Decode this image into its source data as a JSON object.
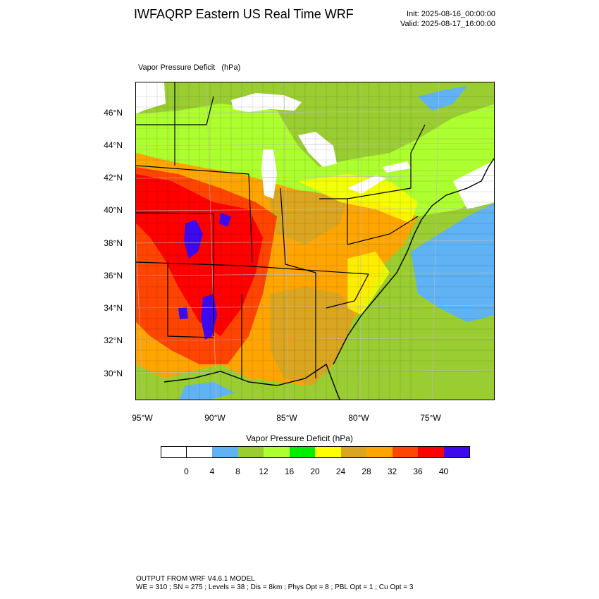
{
  "header": {
    "title": "IWFAQRP Eastern US Real Time WRF",
    "init": "Init: 2025-08-16_00:00:00",
    "valid": "Valid: 2025-08-17_16:00:00"
  },
  "plot": {
    "variable_label": "Vapor Pressure Deficit   (hPa)"
  },
  "axes": {
    "lat_labels": [
      "46°N",
      "44°N",
      "42°N",
      "40°N",
      "38°N",
      "36°N",
      "34°N",
      "32°N",
      "30°N"
    ],
    "lon_labels": [
      "95°W",
      "90°W",
      "85°W",
      "80°W",
      "75°W"
    ]
  },
  "colorbar": {
    "title": "Vapor Pressure Deficit  (hPa)",
    "labels": [
      "0",
      "4",
      "8",
      "12",
      "16",
      "20",
      "24",
      "28",
      "32",
      "36",
      "40"
    ],
    "colors": [
      "#ffffff",
      "#ffffff",
      "#5fb3f4",
      "#9acd32",
      "#adff2f",
      "#00ee00",
      "#ffff00",
      "#daa520",
      "#ffa500",
      "#ff4500",
      "#ff0000",
      "#3d0af0"
    ]
  },
  "footer": {
    "line1": "OUTPUT FROM WRF V4.6.1 MODEL",
    "line2": "WE = 310 ; SN = 275 ; Levels = 38 ; Dis = 8km ; Phys Opt = 8 ; PBL Opt = 1 ; Cu Opt = 3"
  }
}
